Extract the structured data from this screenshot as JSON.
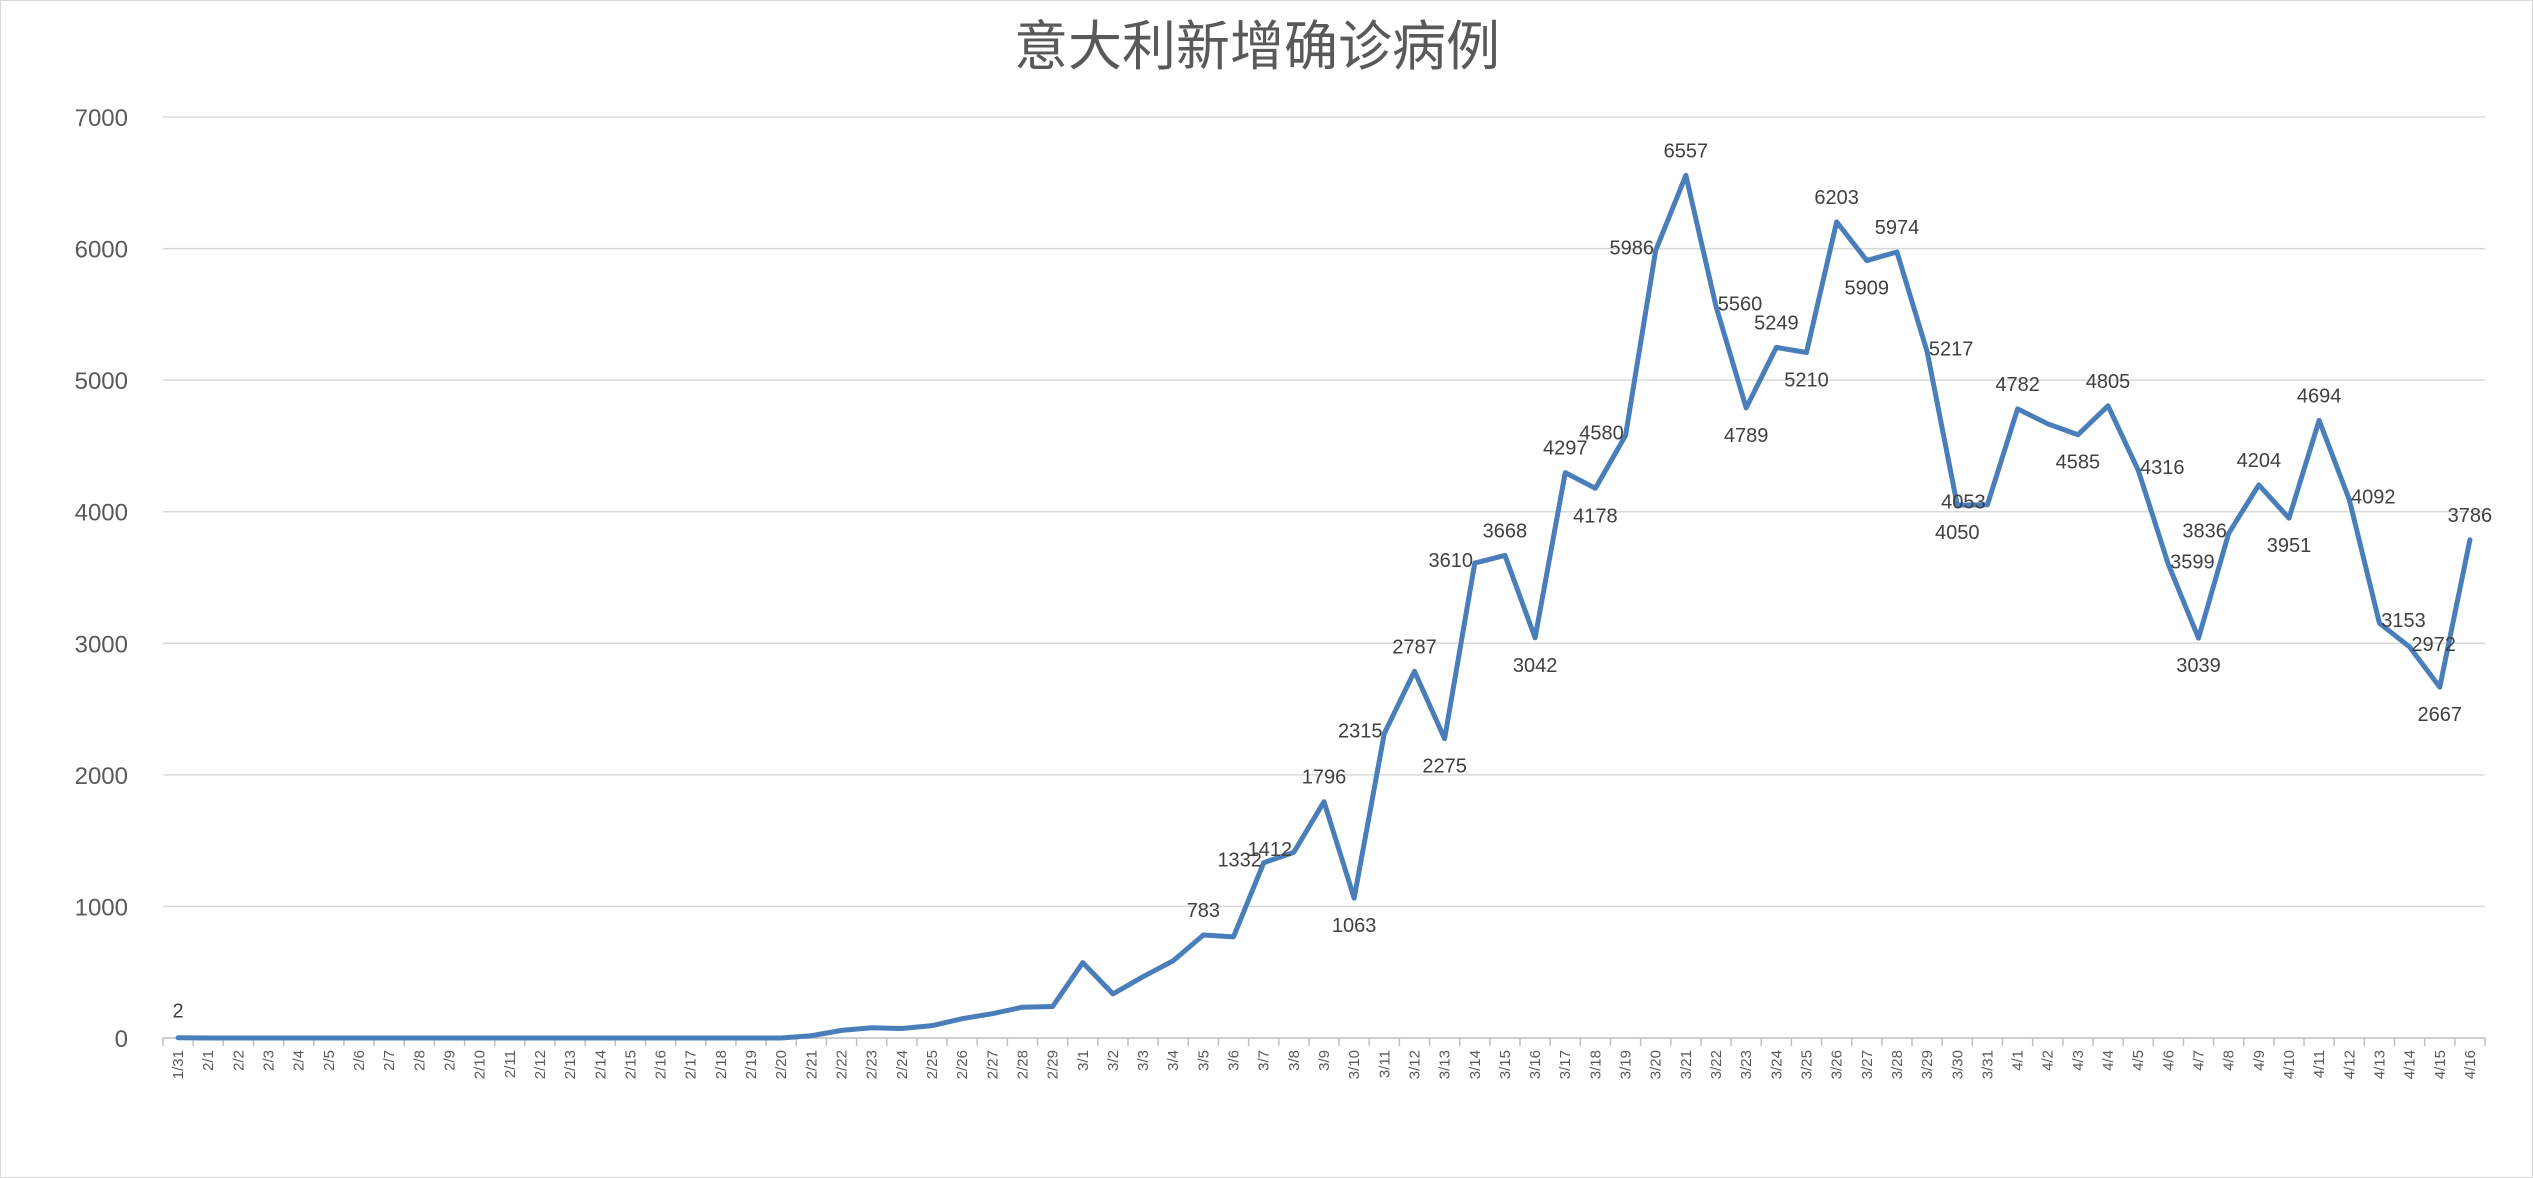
{
  "chart_data": {
    "type": "line",
    "title": "意大利新增确诊病例",
    "xlabel": "",
    "ylabel": "",
    "ylim": [
      0,
      7000
    ],
    "yticks": [
      0,
      1000,
      2000,
      3000,
      4000,
      5000,
      6000,
      7000
    ],
    "grid": true,
    "legend": "none",
    "series_color": "#4a7ebb",
    "categories": [
      "1/31",
      "2/1",
      "2/2",
      "2/3",
      "2/4",
      "2/5",
      "2/6",
      "2/7",
      "2/8",
      "2/9",
      "2/10",
      "2/11",
      "2/12",
      "2/13",
      "2/14",
      "2/15",
      "2/16",
      "2/17",
      "2/18",
      "2/19",
      "2/20",
      "2/21",
      "2/22",
      "2/23",
      "2/24",
      "2/25",
      "2/26",
      "2/27",
      "2/28",
      "2/29",
      "3/1",
      "3/2",
      "3/3",
      "3/4",
      "3/5",
      "3/6",
      "3/7",
      "3/8",
      "3/9",
      "3/10",
      "3/11",
      "3/12",
      "3/13",
      "3/14",
      "3/15",
      "3/16",
      "3/17",
      "3/18",
      "3/19",
      "3/20",
      "3/21",
      "3/22",
      "3/23",
      "3/24",
      "3/25",
      "3/26",
      "3/27",
      "3/28",
      "3/29",
      "3/30",
      "3/31",
      "4/1",
      "4/2",
      "4/3",
      "4/4",
      "4/5",
      "4/6",
      "4/7",
      "4/8",
      "4/9",
      "4/10",
      "4/11",
      "4/12",
      "4/13",
      "4/14",
      "4/15",
      "4/16"
    ],
    "values": [
      2,
      0,
      0,
      0,
      0,
      0,
      0,
      0,
      0,
      0,
      0,
      0,
      0,
      0,
      0,
      0,
      0,
      0,
      0,
      0,
      0,
      17,
      58,
      78,
      72,
      94,
      147,
      185,
      234,
      239,
      573,
      335,
      466,
      587,
      783,
      769,
      1332,
      1412,
      1796,
      1063,
      2315,
      2787,
      2275,
      3610,
      3668,
      3042,
      4297,
      4178,
      4580,
      5986,
      6557,
      5560,
      4789,
      5249,
      5210,
      6203,
      5909,
      5974,
      5217,
      4050,
      4053,
      4782,
      4668,
      4585,
      4805,
      4316,
      3599,
      3039,
      3836,
      4204,
      3951,
      4694,
      4092,
      3153,
      2972,
      2667,
      3786
    ],
    "data_labels": {
      "0": "2",
      "34": "783",
      "36": "1332",
      "37": "1412",
      "38": "1796",
      "39": "1063",
      "40": "2315",
      "41": "2787",
      "42": "2275",
      "43": "3610",
      "44": "3668",
      "45": "3042",
      "46": "4297",
      "47": "4178",
      "48": "4580",
      "49": "5986",
      "50": "6557",
      "51": "5560",
      "52": "4789",
      "53": "5249",
      "54": "5210",
      "55": "6203",
      "56": "5909",
      "57": "5974",
      "58": "5217",
      "59": "4050",
      "60": "4053",
      "61": "4782",
      "63": "4585",
      "64": "4805",
      "65": "4316",
      "66": "3599",
      "67": "3039",
      "68": "3836",
      "69": "4204",
      "70": "3951",
      "71": "4694",
      "72": "4092",
      "73": "3153",
      "74": "2972",
      "75": "2667",
      "76": "3786"
    }
  }
}
